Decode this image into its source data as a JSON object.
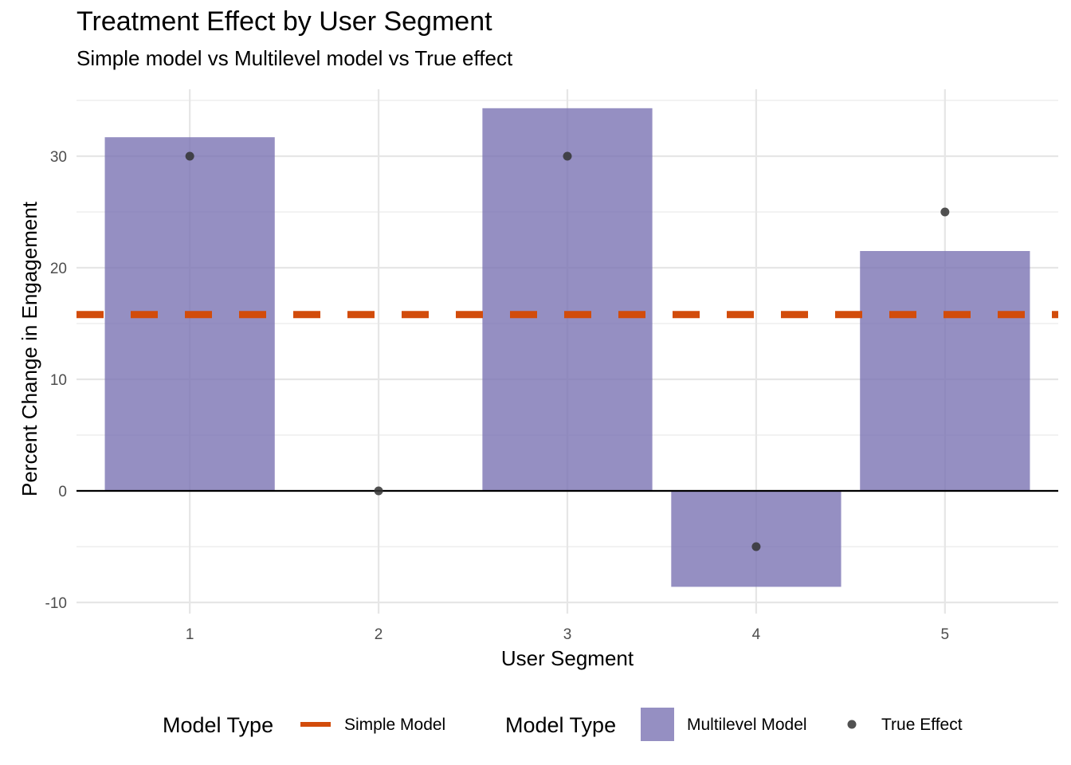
{
  "chart_data": {
    "type": "bar",
    "title": "Treatment Effect by User Segment",
    "subtitle": "Simple model vs Multilevel model vs True effect",
    "xlabel": "User Segment",
    "ylabel": "Percent Change in Engagement",
    "categories": [
      "1",
      "2",
      "3",
      "4",
      "5"
    ],
    "ylim": [
      -11,
      36
    ],
    "yticks": [
      -10,
      0,
      10,
      20,
      30
    ],
    "grid": true,
    "series": [
      {
        "name": "Multilevel Model",
        "kind": "bar",
        "values": [
          31.7,
          0,
          34.3,
          -8.6,
          21.5
        ],
        "color": "#7b73b3"
      },
      {
        "name": "True Effect",
        "kind": "point",
        "values": [
          30,
          0,
          30,
          -5,
          25
        ],
        "color": "#333333"
      },
      {
        "name": "Simple Model",
        "kind": "hline",
        "value": 15.8,
        "color": "#d24c0b"
      }
    ],
    "legend": {
      "position": "bottom",
      "groups": [
        {
          "title": "Model Type",
          "items": [
            "Simple Model"
          ]
        },
        {
          "title": "Model Type",
          "items": [
            "Multilevel Model",
            "True Effect"
          ]
        }
      ]
    }
  }
}
